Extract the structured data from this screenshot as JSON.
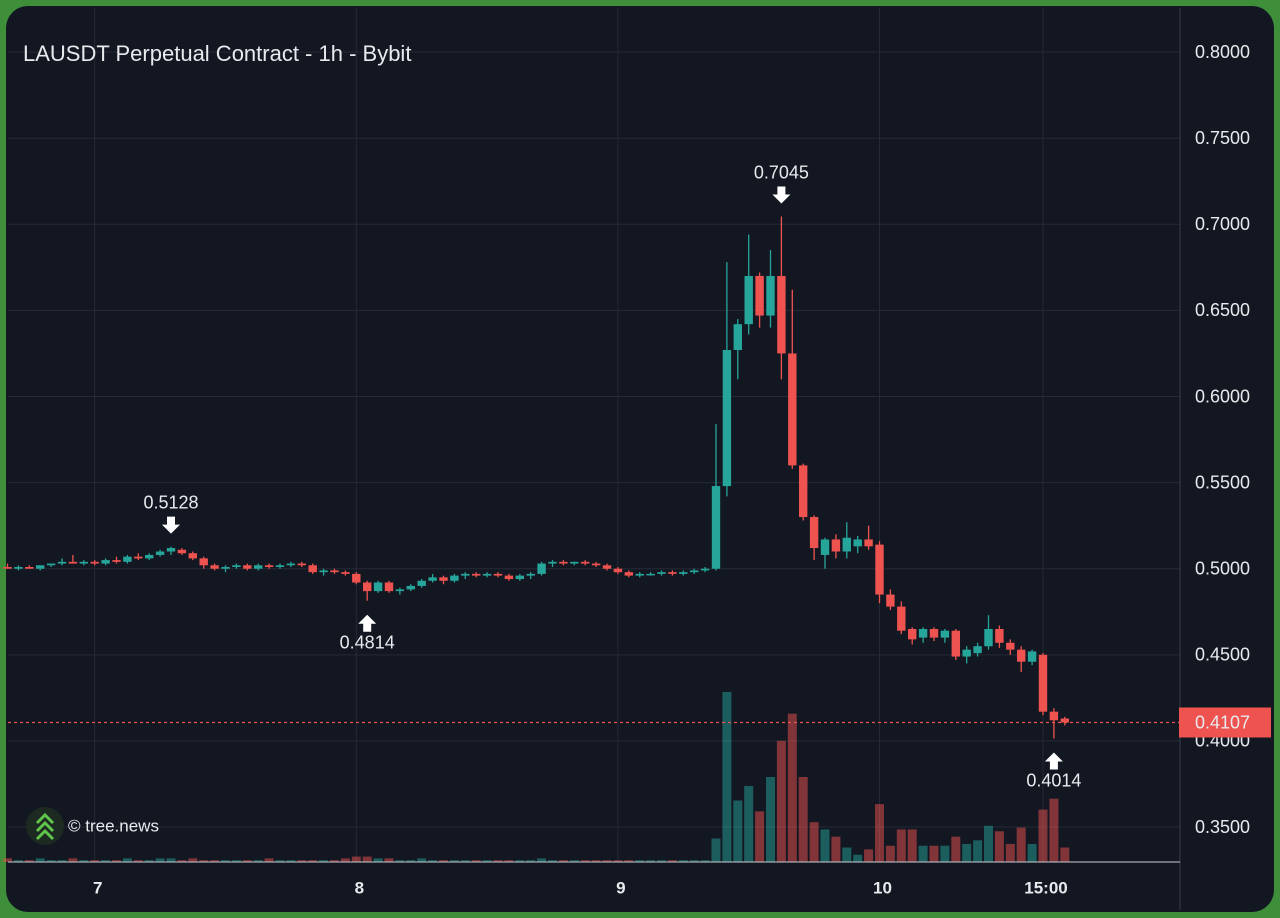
{
  "chart_data": {
    "type": "candlestick",
    "title": "LAUSDT Perpetual Contract - 1h - Bybit",
    "watermark": "© tree.news",
    "up_color": "#26a69a",
    "down_color": "#ef5350",
    "ylim": [
      0.3297,
      0.8256
    ],
    "yticks": [
      {
        "value": 0.35,
        "label": "0.3500"
      },
      {
        "value": 0.4,
        "label": "0.4000"
      },
      {
        "value": 0.45,
        "label": "0.4500"
      },
      {
        "value": 0.5,
        "label": "0.5000"
      },
      {
        "value": 0.55,
        "label": "0.5500"
      },
      {
        "value": 0.6,
        "label": "0.6000"
      },
      {
        "value": 0.65,
        "label": "0.6500"
      },
      {
        "value": 0.7,
        "label": "0.7000"
      },
      {
        "value": 0.75,
        "label": "0.7500"
      },
      {
        "value": 0.8,
        "label": "0.8000"
      }
    ],
    "xticks": [
      {
        "value": 8,
        "label": "7"
      },
      {
        "value": 32,
        "label": "8"
      },
      {
        "value": 56,
        "label": "9"
      },
      {
        "value": 80,
        "label": "10"
      },
      {
        "value": 95,
        "label": "15:00"
      }
    ],
    "grid": true,
    "last_price": 0.4107,
    "annotations": [
      0.5128,
      0.4814,
      0.7045,
      0.4014
    ],
    "ohlc": [
      [
        0.501,
        0.503,
        0.5,
        0.5
      ],
      [
        0.5,
        0.502,
        0.499,
        0.501
      ],
      [
        0.501,
        0.502,
        0.5,
        0.5
      ],
      [
        0.5,
        0.502,
        0.499,
        0.502
      ],
      [
        0.502,
        0.503,
        0.501,
        0.503
      ],
      [
        0.503,
        0.506,
        0.502,
        0.504
      ],
      [
        0.504,
        0.508,
        0.503,
        0.503
      ],
      [
        0.503,
        0.505,
        0.502,
        0.504
      ],
      [
        0.504,
        0.505,
        0.502,
        0.503
      ],
      [
        0.503,
        0.506,
        0.502,
        0.505
      ],
      [
        0.505,
        0.507,
        0.503,
        0.504
      ],
      [
        0.504,
        0.508,
        0.503,
        0.507
      ],
      [
        0.507,
        0.509,
        0.505,
        0.506
      ],
      [
        0.506,
        0.509,
        0.505,
        0.508
      ],
      [
        0.508,
        0.511,
        0.507,
        0.51
      ],
      [
        0.51,
        0.5128,
        0.508,
        0.512
      ],
      [
        0.511,
        0.512,
        0.508,
        0.509
      ],
      [
        0.509,
        0.51,
        0.505,
        0.506
      ],
      [
        0.506,
        0.507,
        0.5,
        0.502
      ],
      [
        0.502,
        0.503,
        0.499,
        0.5
      ],
      [
        0.5,
        0.502,
        0.498,
        0.501
      ],
      [
        0.501,
        0.503,
        0.5,
        0.502
      ],
      [
        0.502,
        0.503,
        0.499,
        0.5
      ],
      [
        0.5,
        0.503,
        0.499,
        0.502
      ],
      [
        0.502,
        0.503,
        0.5,
        0.501
      ],
      [
        0.501,
        0.503,
        0.5,
        0.502
      ],
      [
        0.502,
        0.504,
        0.501,
        0.503
      ],
      [
        0.503,
        0.504,
        0.501,
        0.502
      ],
      [
        0.502,
        0.503,
        0.497,
        0.498
      ],
      [
        0.498,
        0.5,
        0.496,
        0.499
      ],
      [
        0.499,
        0.5,
        0.497,
        0.498
      ],
      [
        0.498,
        0.499,
        0.496,
        0.497
      ],
      [
        0.497,
        0.498,
        0.491,
        0.492
      ],
      [
        0.492,
        0.493,
        0.4814,
        0.487
      ],
      [
        0.487,
        0.493,
        0.486,
        0.492
      ],
      [
        0.492,
        0.493,
        0.486,
        0.487
      ],
      [
        0.487,
        0.489,
        0.485,
        0.488
      ],
      [
        0.488,
        0.491,
        0.487,
        0.49
      ],
      [
        0.49,
        0.494,
        0.489,
        0.493
      ],
      [
        0.493,
        0.497,
        0.492,
        0.495
      ],
      [
        0.495,
        0.496,
        0.491,
        0.493
      ],
      [
        0.493,
        0.497,
        0.492,
        0.496
      ],
      [
        0.496,
        0.498,
        0.494,
        0.497
      ],
      [
        0.497,
        0.498,
        0.495,
        0.496
      ],
      [
        0.496,
        0.498,
        0.495,
        0.497
      ],
      [
        0.497,
        0.498,
        0.495,
        0.496
      ],
      [
        0.496,
        0.497,
        0.493,
        0.494
      ],
      [
        0.494,
        0.497,
        0.493,
        0.496
      ],
      [
        0.496,
        0.498,
        0.494,
        0.497
      ],
      [
        0.497,
        0.504,
        0.496,
        0.503
      ],
      [
        0.503,
        0.505,
        0.501,
        0.504
      ],
      [
        0.504,
        0.505,
        0.502,
        0.503
      ],
      [
        0.503,
        0.504,
        0.502,
        0.504
      ],
      [
        0.504,
        0.505,
        0.502,
        0.503
      ],
      [
        0.503,
        0.504,
        0.501,
        0.502
      ],
      [
        0.502,
        0.503,
        0.499,
        0.5
      ],
      [
        0.5,
        0.501,
        0.497,
        0.498
      ],
      [
        0.498,
        0.499,
        0.495,
        0.496
      ],
      [
        0.496,
        0.498,
        0.495,
        0.497
      ],
      [
        0.497,
        0.498,
        0.496,
        0.497
      ],
      [
        0.497,
        0.499,
        0.496,
        0.498
      ],
      [
        0.498,
        0.499,
        0.496,
        0.497
      ],
      [
        0.497,
        0.499,
        0.496,
        0.498
      ],
      [
        0.498,
        0.5,
        0.497,
        0.499
      ],
      [
        0.499,
        0.501,
        0.498,
        0.5
      ],
      [
        0.5,
        0.584,
        0.499,
        0.548
      ],
      [
        0.548,
        0.678,
        0.542,
        0.627
      ],
      [
        0.627,
        0.645,
        0.61,
        0.642
      ],
      [
        0.642,
        0.694,
        0.636,
        0.67
      ],
      [
        0.67,
        0.672,
        0.64,
        0.647
      ],
      [
        0.647,
        0.685,
        0.64,
        0.67
      ],
      [
        0.67,
        0.7045,
        0.61,
        0.625
      ],
      [
        0.625,
        0.662,
        0.558,
        0.56
      ],
      [
        0.56,
        0.561,
        0.528,
        0.53
      ],
      [
        0.53,
        0.531,
        0.505,
        0.512
      ],
      [
        0.508,
        0.518,
        0.5,
        0.517
      ],
      [
        0.517,
        0.52,
        0.506,
        0.51
      ],
      [
        0.51,
        0.527,
        0.506,
        0.518
      ],
      [
        0.513,
        0.519,
        0.509,
        0.517
      ],
      [
        0.517,
        0.525,
        0.511,
        0.513
      ],
      [
        0.514,
        0.516,
        0.48,
        0.485
      ],
      [
        0.485,
        0.488,
        0.476,
        0.478
      ],
      [
        0.478,
        0.481,
        0.462,
        0.464
      ],
      [
        0.465,
        0.466,
        0.456,
        0.459
      ],
      [
        0.46,
        0.466,
        0.457,
        0.465
      ],
      [
        0.465,
        0.466,
        0.458,
        0.46
      ],
      [
        0.46,
        0.465,
        0.457,
        0.464
      ],
      [
        0.464,
        0.465,
        0.447,
        0.449
      ],
      [
        0.449,
        0.455,
        0.445,
        0.453
      ],
      [
        0.451,
        0.457,
        0.449,
        0.455
      ],
      [
        0.455,
        0.473,
        0.453,
        0.465
      ],
      [
        0.465,
        0.467,
        0.454,
        0.457
      ],
      [
        0.457,
        0.459,
        0.45,
        0.453
      ],
      [
        0.453,
        0.455,
        0.44,
        0.446
      ],
      [
        0.446,
        0.453,
        0.444,
        0.452
      ],
      [
        0.45,
        0.451,
        0.415,
        0.417
      ],
      [
        0.417,
        0.419,
        0.4014,
        0.412
      ],
      [
        0.413,
        0.414,
        0.409,
        0.4107
      ]
    ],
    "volume": [
      2,
      1,
      1,
      2,
      1,
      1,
      2,
      1,
      1,
      1,
      1,
      2,
      1,
      1,
      2,
      2,
      1,
      2,
      1,
      1,
      1,
      1,
      1,
      1,
      2,
      1,
      1,
      1,
      1,
      1,
      1,
      2,
      3,
      3,
      2,
      2,
      1,
      1,
      2,
      1,
      1,
      1,
      1,
      1,
      1,
      1,
      1,
      1,
      1,
      2,
      1,
      1,
      1,
      1,
      1,
      1,
      1,
      1,
      1,
      1,
      1,
      1,
      1,
      1,
      1,
      13,
      94,
      34,
      42,
      28,
      47,
      67,
      82,
      47,
      22,
      18,
      14,
      8,
      4,
      7,
      32,
      9,
      18,
      18,
      9,
      9,
      9,
      14,
      10,
      12,
      20,
      17,
      10,
      19,
      10,
      29,
      35,
      8
    ]
  }
}
